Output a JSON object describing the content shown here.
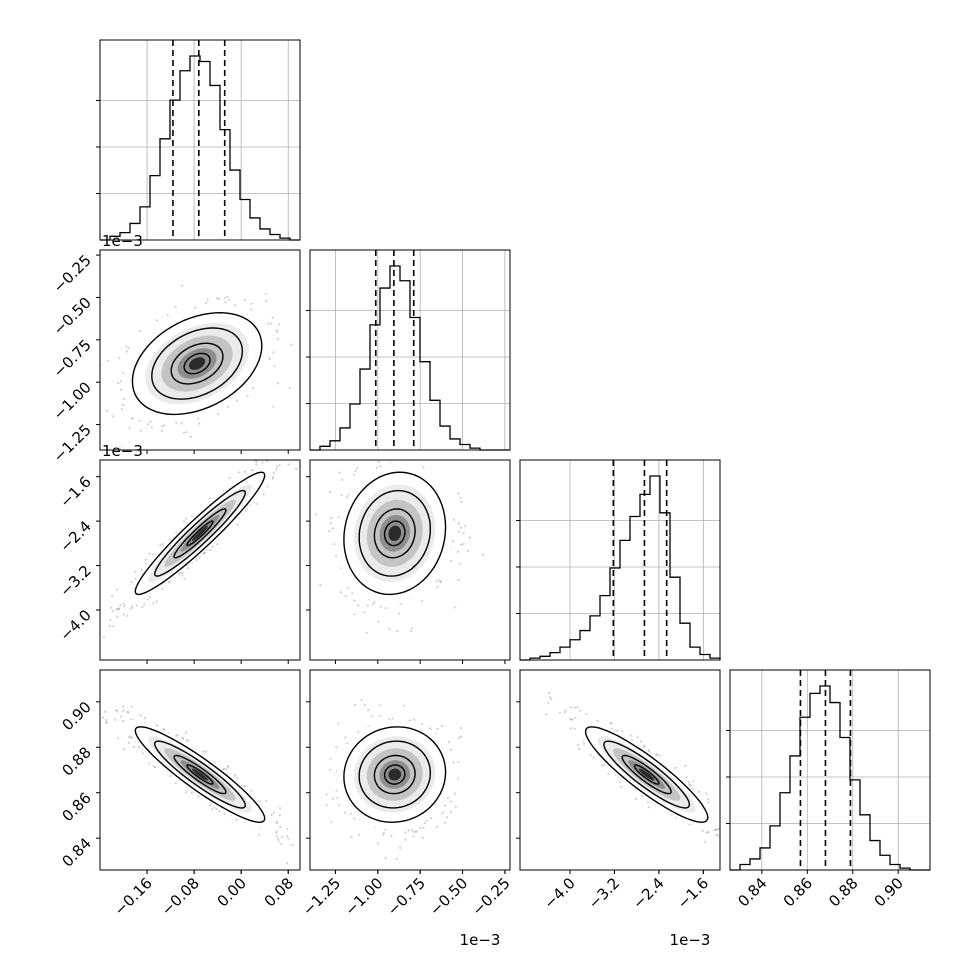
{
  "chart_data": {
    "type": "corner",
    "parameters": [
      {
        "range": [
          -0.24,
          0.1
        ],
        "ticks": [
          -0.16,
          -0.08,
          0.0,
          0.08
        ],
        "tick_labels": [
          "−0.16",
          "−0.08",
          "0.00",
          "0.08"
        ],
        "offset_text": ""
      },
      {
        "range": [
          -1.4,
          -0.22
        ],
        "ticks": [
          -1.25,
          -1.0,
          -0.75,
          -0.5,
          -0.25
        ],
        "tick_labels": [
          "−1.25",
          "−1.00",
          "−0.75",
          "−0.50",
          "−0.25"
        ],
        "offset_text": "1e−3"
      },
      {
        "range": [
          -4.9,
          -1.3
        ],
        "ticks": [
          -4.0,
          -3.2,
          -2.4,
          -1.6
        ],
        "tick_labels": [
          "−4.0",
          "−3.2",
          "−2.4",
          "−1.6"
        ],
        "offset_text": "1e−3"
      },
      {
        "range": [
          0.826,
          0.914
        ],
        "ticks": [
          0.84,
          0.86,
          0.88,
          0.9
        ],
        "tick_labels": [
          "0.84",
          "0.86",
          "0.88",
          "0.90"
        ],
        "offset_text": ""
      }
    ],
    "quantiles": [
      [
        -0.116,
        -0.072,
        -0.028
      ],
      [
        -1.012,
        -0.905,
        -0.788
      ],
      [
        -3.22,
        -2.66,
        -2.26
      ],
      [
        0.857,
        0.868,
        0.879
      ]
    ],
    "histograms": [
      [
        0,
        0.02,
        0.04,
        0.09,
        0.18,
        0.35,
        0.55,
        0.76,
        0.92,
        1.0,
        0.97,
        0.84,
        0.6,
        0.38,
        0.22,
        0.12,
        0.06,
        0.03,
        0.01,
        0
      ],
      [
        0,
        0.02,
        0.05,
        0.12,
        0.25,
        0.44,
        0.68,
        0.88,
        1.0,
        0.92,
        0.72,
        0.48,
        0.27,
        0.13,
        0.06,
        0.03,
        0.01,
        0,
        0,
        0
      ],
      [
        0,
        0.01,
        0.02,
        0.04,
        0.07,
        0.11,
        0.16,
        0.24,
        0.35,
        0.5,
        0.65,
        0.78,
        0.9,
        1.0,
        0.8,
        0.45,
        0.2,
        0.07,
        0.03,
        0.01
      ],
      [
        0,
        0.03,
        0.06,
        0.12,
        0.24,
        0.42,
        0.62,
        0.83,
        0.96,
        1.0,
        0.91,
        0.72,
        0.49,
        0.3,
        0.16,
        0.08,
        0.03,
        0.01,
        0,
        0
      ]
    ],
    "pairs": [
      {
        "row": 1,
        "col": 0,
        "center": [
          -0.075,
          -0.89
        ],
        "sd": [
          0.055,
          0.15
        ],
        "corr": 0.35
      },
      {
        "row": 2,
        "col": 0,
        "center": [
          -0.07,
          -2.62
        ],
        "sd": [
          0.055,
          0.55
        ],
        "corr": 0.95
      },
      {
        "row": 2,
        "col": 1,
        "center": [
          -0.9,
          -2.62
        ],
        "sd": [
          0.15,
          0.55
        ],
        "corr": 0.1
      },
      {
        "row": 3,
        "col": 0,
        "center": [
          -0.07,
          0.868
        ],
        "sd": [
          0.055,
          0.0105
        ],
        "corr": -0.92
      },
      {
        "row": 3,
        "col": 1,
        "center": [
          -0.9,
          0.868
        ],
        "sd": [
          0.15,
          0.0105
        ],
        "corr": 0.05
      },
      {
        "row": 3,
        "col": 2,
        "center": [
          -2.62,
          0.868
        ],
        "sd": [
          0.55,
          0.0105
        ],
        "corr": -0.9
      }
    ],
    "grid": true,
    "xlabel": "",
    "ylabel": "",
    "title": ""
  }
}
